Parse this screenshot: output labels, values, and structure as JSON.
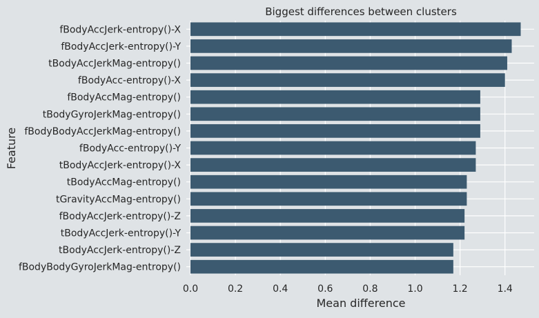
{
  "chart_data": {
    "type": "bar",
    "orientation": "horizontal",
    "title": "Biggest differences between clusters",
    "xlabel": "Mean difference",
    "ylabel": "Feature",
    "xlim": [
      0,
      1.5
    ],
    "xticks": [
      "0.0",
      "0.2",
      "0.4",
      "0.6",
      "0.8",
      "1.0",
      "1.2",
      "1.4"
    ],
    "grid": true,
    "bar_color": "#3c5a70",
    "categories": [
      "fBodyAccJerk-entropy()-X",
      "fBodyAccJerk-entropy()-Y",
      "tBodyAccJerkMag-entropy()",
      "fBodyAcc-entropy()-X",
      "fBodyAccMag-entropy()",
      "tBodyGyroJerkMag-entropy()",
      "fBodyBodyAccJerkMag-entropy()",
      "fBodyAcc-entropy()-Y",
      "tBodyAccJerk-entropy()-X",
      "tBodyAccMag-entropy()",
      "tGravityAccMag-entropy()",
      "fBodyAccJerk-entropy()-Z",
      "tBodyAccJerk-entropy()-Y",
      "tBodyAccJerk-entropy()-Z",
      "fBodyBodyGyroJerkMag-entropy()"
    ],
    "values": [
      1.47,
      1.43,
      1.41,
      1.4,
      1.29,
      1.29,
      1.29,
      1.27,
      1.27,
      1.23,
      1.23,
      1.22,
      1.22,
      1.17,
      1.17
    ]
  }
}
